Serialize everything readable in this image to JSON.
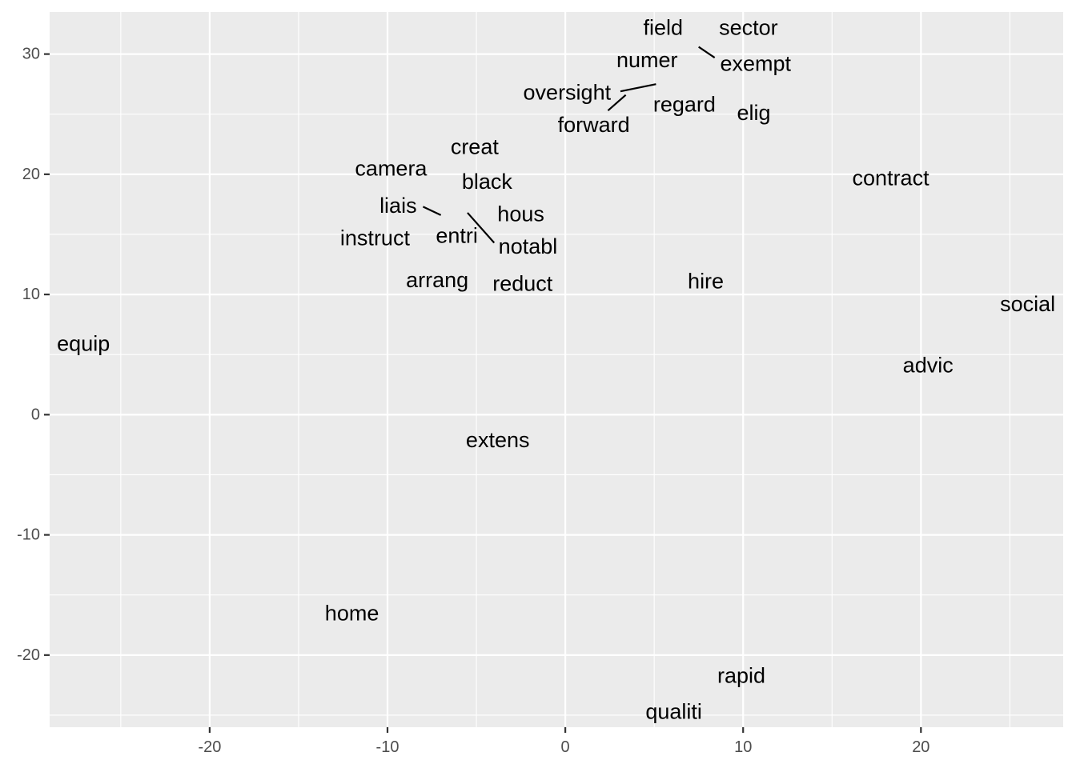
{
  "chart_data": {
    "type": "scatter",
    "title": "",
    "xlabel": "",
    "ylabel": "",
    "xlim": [
      -29.0,
      28.0
    ],
    "ylim": [
      -26.0,
      33.5
    ],
    "x_ticks": [
      -20,
      -10,
      0,
      10,
      20
    ],
    "y_ticks": [
      -20,
      -10,
      0,
      10,
      20,
      30
    ],
    "x_tick_labels": [
      "-20",
      "-10",
      "0",
      "10",
      "20"
    ],
    "y_tick_labels": [
      "-20",
      "-10",
      "0",
      "10",
      "20",
      "30"
    ],
    "grid": true,
    "points": [
      {
        "label": "field",
        "x": 5.5,
        "y": 32.2
      },
      {
        "label": "sector",
        "x": 10.3,
        "y": 32.2
      },
      {
        "label": "numer",
        "x": 4.6,
        "y": 29.5
      },
      {
        "label": "exempt",
        "x": 10.7,
        "y": 29.2
      },
      {
        "label": "oversight",
        "x": 0.1,
        "y": 26.8
      },
      {
        "label": "regard",
        "x": 6.7,
        "y": 25.8
      },
      {
        "label": "forward",
        "x": 1.6,
        "y": 24.1
      },
      {
        "label": "elig",
        "x": 10.6,
        "y": 25.1
      },
      {
        "label": "creat",
        "x": -5.1,
        "y": 22.3
      },
      {
        "label": "camera",
        "x": -9.8,
        "y": 20.5
      },
      {
        "label": "black",
        "x": -4.4,
        "y": 19.4
      },
      {
        "label": "contract",
        "x": 18.3,
        "y": 19.7
      },
      {
        "label": "liais",
        "x": -9.4,
        "y": 17.4
      },
      {
        "label": "hous",
        "x": -2.5,
        "y": 16.7
      },
      {
        "label": "instruct",
        "x": -10.7,
        "y": 14.7
      },
      {
        "label": "entri",
        "x": -6.1,
        "y": 14.9
      },
      {
        "label": "notabl",
        "x": -2.1,
        "y": 14.0
      },
      {
        "label": "arrang",
        "x": -7.2,
        "y": 11.2
      },
      {
        "label": "reduct",
        "x": -2.4,
        "y": 10.9
      },
      {
        "label": "hire",
        "x": 7.9,
        "y": 11.1
      },
      {
        "label": "social",
        "x": 26.0,
        "y": 9.2
      },
      {
        "label": "equip",
        "x": -27.1,
        "y": 5.9
      },
      {
        "label": "advic",
        "x": 20.4,
        "y": 4.1
      },
      {
        "label": "extens",
        "x": -3.8,
        "y": -2.1
      },
      {
        "label": "home",
        "x": -12.0,
        "y": -16.5
      },
      {
        "label": "rapid",
        "x": 9.9,
        "y": -21.7
      },
      {
        "label": "qualiti",
        "x": 6.1,
        "y": -24.7
      }
    ],
    "segments": [
      {
        "x1": 7.5,
        "y1": 30.6,
        "x2": 8.4,
        "y2": 29.7
      },
      {
        "x1": 3.1,
        "y1": 26.9,
        "x2": 5.1,
        "y2": 27.5
      },
      {
        "x1": 3.4,
        "y1": 26.6,
        "x2": 2.4,
        "y2": 25.3
      },
      {
        "x1": -8.0,
        "y1": 17.3,
        "x2": -7.0,
        "y2": 16.6
      },
      {
        "x1": -5.5,
        "y1": 16.8,
        "x2": -4.0,
        "y2": 14.3
      }
    ]
  }
}
